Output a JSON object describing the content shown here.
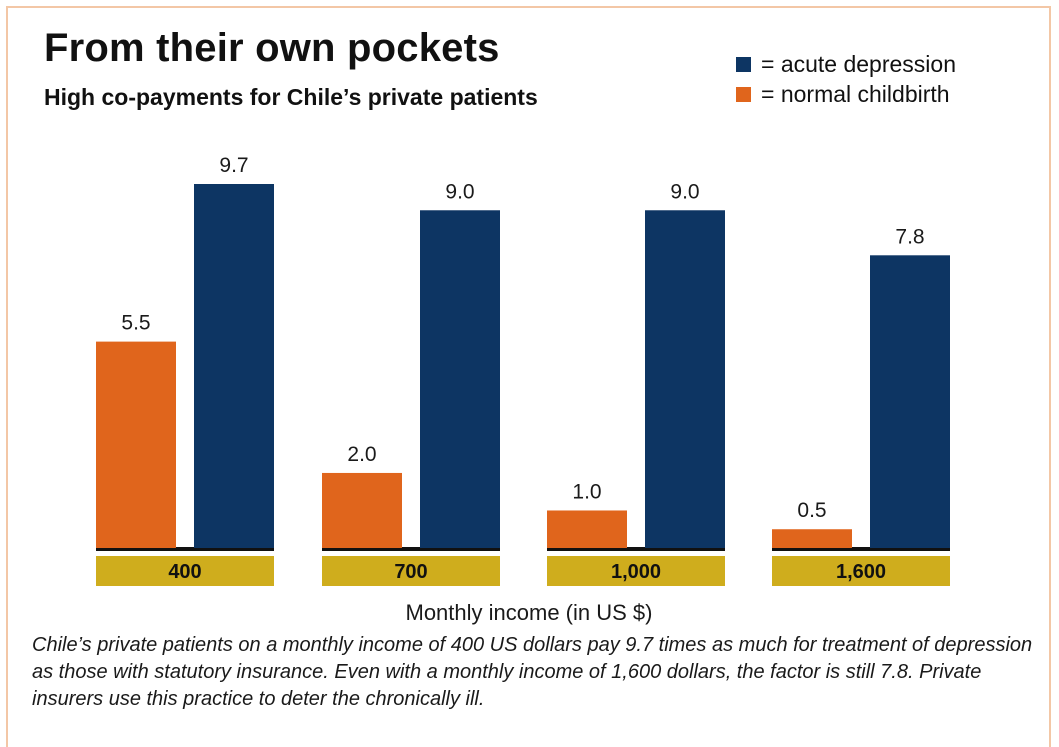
{
  "title": "From their own pockets",
  "subtitle": "High co-payments for Chile’s private patients",
  "legend": [
    {
      "label": "= acute depression",
      "color": "#0d3563"
    },
    {
      "label": "= normal childbirth",
      "color": "#e0651c"
    }
  ],
  "caption": "Chile’s private patients on a monthly income of 400 US dollars pay 9.7 times as much for treatment of depression as those with statutory insurance. Even with a monthly income of 1,600 dollars, the factor is still 7.8. Private insurers use this practice to deter the chronically ill.",
  "colors": {
    "depression": "#0d3563",
    "childbirth": "#e0651c",
    "category_box": "#cfad1d",
    "baseline": "#111111"
  },
  "chart_data": {
    "type": "bar",
    "categories": [
      "400",
      "700",
      "1,000",
      "1,600"
    ],
    "xlabel": "Monthly income (in US $)",
    "ylabel": "",
    "ylim": [
      0,
      10
    ],
    "grid": false,
    "legend_position": "top-right",
    "series": [
      {
        "name": "normal childbirth",
        "color": "#e0651c",
        "values": [
          5.5,
          2.0,
          1.0,
          0.5
        ],
        "labels": [
          "5.5",
          "2.0",
          "1.0",
          "0.5"
        ]
      },
      {
        "name": "acute depression",
        "color": "#0d3563",
        "values": [
          9.7,
          9.0,
          9.0,
          7.8
        ],
        "labels": [
          "9.7",
          "9.0",
          "9.0",
          "7.8"
        ]
      }
    ]
  }
}
